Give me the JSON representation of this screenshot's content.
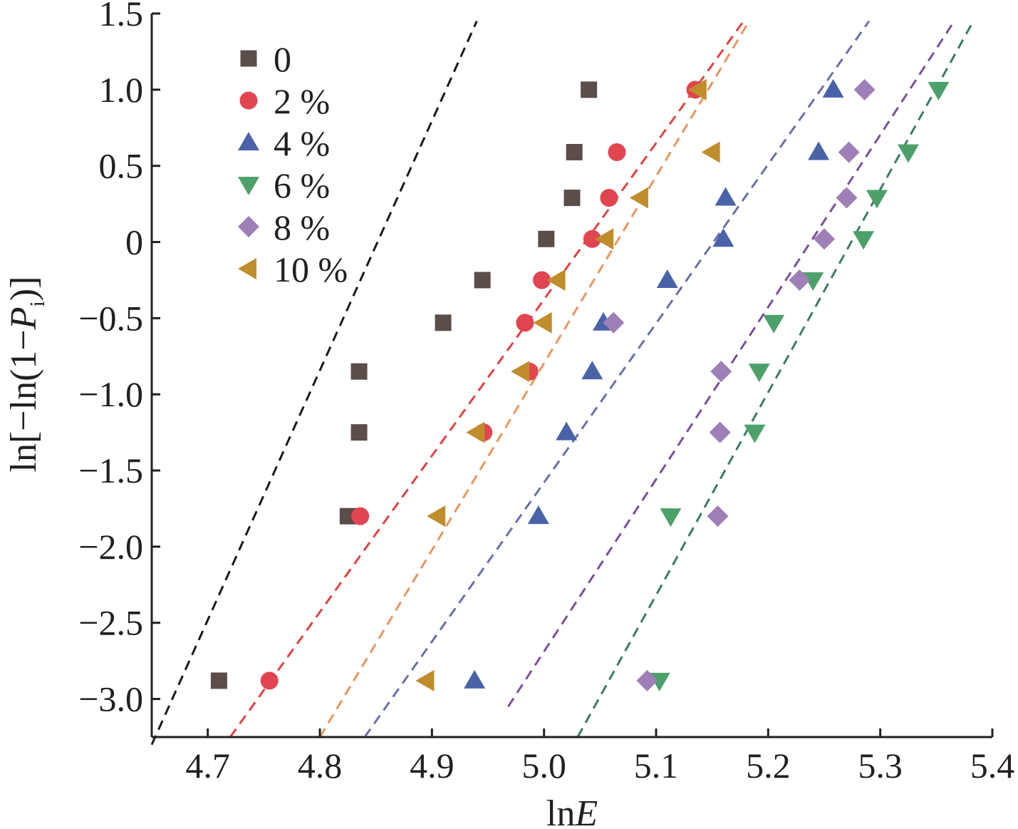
{
  "chart_data": {
    "type": "scatter",
    "xlabel_parts": [
      "ln",
      "E"
    ],
    "ylabel_parts": [
      "ln[−ln(1−",
      "P",
      "i",
      ")]"
    ],
    "xlim": [
      4.65,
      5.4
    ],
    "ylim": [
      -3.25,
      1.5
    ],
    "x_ticks": [
      4.7,
      4.8,
      4.9,
      5.0,
      5.1,
      5.2,
      5.3,
      5.4
    ],
    "x_tick_labels": [
      "4.7",
      "4.8",
      "4.9",
      "5.0",
      "5.1",
      "5.2",
      "5.3",
      "5.4"
    ],
    "y_ticks": [
      1.5,
      1.0,
      0.5,
      0.0,
      -0.5,
      -1.0,
      -1.5,
      -2.0,
      -2.5,
      -3.0
    ],
    "y_tick_labels": [
      "1.5",
      "1.0",
      "0.5",
      "0",
      "−0.5",
      "−1.0",
      "−1.5",
      "−2.0",
      "−2.5",
      "−3.0"
    ],
    "grid": false,
    "legend_position": "top-left",
    "series": [
      {
        "name": "0",
        "marker": "square",
        "color": "#5a4d4a",
        "line_color": "#1a1a1a",
        "x": [
          4.71,
          4.825,
          4.835,
          4.835,
          4.91,
          4.945,
          5.002,
          5.025,
          5.027,
          5.04
        ],
        "y": [
          -2.88,
          -1.8,
          -1.25,
          -0.85,
          -0.53,
          -0.25,
          0.02,
          0.29,
          0.59,
          1.0
        ],
        "fit": [
          [
            4.65,
            -3.3
          ],
          [
            4.94,
            1.45
          ]
        ]
      },
      {
        "name": "2 %",
        "marker": "circle",
        "color": "#e1454f",
        "line_color": "#e0403f",
        "x": [
          4.755,
          4.836,
          4.946,
          4.987,
          4.983,
          4.998,
          5.043,
          5.058,
          5.065,
          5.135
        ],
        "y": [
          -2.88,
          -1.8,
          -1.25,
          -0.85,
          -0.53,
          -0.25,
          0.02,
          0.29,
          0.59,
          1.0
        ],
        "fit": [
          [
            4.72,
            -3.25
          ],
          [
            5.178,
            1.45
          ]
        ]
      },
      {
        "name": "4 %",
        "marker": "triangle-up",
        "color": "#4a63a8",
        "line_color": "#6a6fa8",
        "x": [
          4.938,
          4.995,
          5.02,
          5.043,
          5.053,
          5.11,
          5.16,
          5.162,
          5.245,
          5.258
        ],
        "y": [
          -2.88,
          -1.8,
          -1.25,
          -0.85,
          -0.53,
          -0.25,
          0.02,
          0.29,
          0.59,
          1.0
        ],
        "fit": [
          [
            4.84,
            -3.25
          ],
          [
            5.29,
            1.45
          ]
        ]
      },
      {
        "name": "6 %",
        "marker": "triangle-down",
        "color": "#4ea06a",
        "line_color": "#3c7a65",
        "x": [
          5.103,
          5.113,
          5.188,
          5.192,
          5.205,
          5.24,
          5.285,
          5.297,
          5.325,
          5.352
        ],
        "y": [
          -2.88,
          -1.8,
          -1.25,
          -0.85,
          -0.53,
          -0.25,
          0.02,
          0.29,
          0.59,
          1.0
        ],
        "fit": [
          [
            5.03,
            -3.25
          ],
          [
            5.383,
            1.45
          ]
        ]
      },
      {
        "name": "8 %",
        "marker": "diamond",
        "color": "#9f7fb7",
        "line_color": "#7a4f9c",
        "x": [
          5.092,
          5.155,
          5.157,
          5.158,
          5.062,
          5.228,
          5.25,
          5.27,
          5.272,
          5.286
        ],
        "y": [
          -2.88,
          -1.8,
          -1.25,
          -0.85,
          -0.53,
          -0.25,
          0.02,
          0.29,
          0.59,
          1.0
        ],
        "fit": [
          [
            4.968,
            -3.05
          ],
          [
            5.366,
            1.45
          ]
        ]
      },
      {
        "name": "10 %",
        "marker": "triangle-left",
        "color": "#c08d2c",
        "line_color": "#e8955e",
        "x": [
          4.895,
          4.905,
          4.94,
          4.98,
          5.0,
          5.012,
          5.055,
          5.086,
          5.15,
          5.138
        ],
        "y": [
          -2.88,
          -1.8,
          -1.25,
          -0.85,
          -0.53,
          -0.25,
          0.02,
          0.29,
          0.59,
          1.0
        ],
        "fit": [
          [
            4.8,
            -3.25
          ],
          [
            5.183,
            1.45
          ]
        ]
      }
    ]
  }
}
